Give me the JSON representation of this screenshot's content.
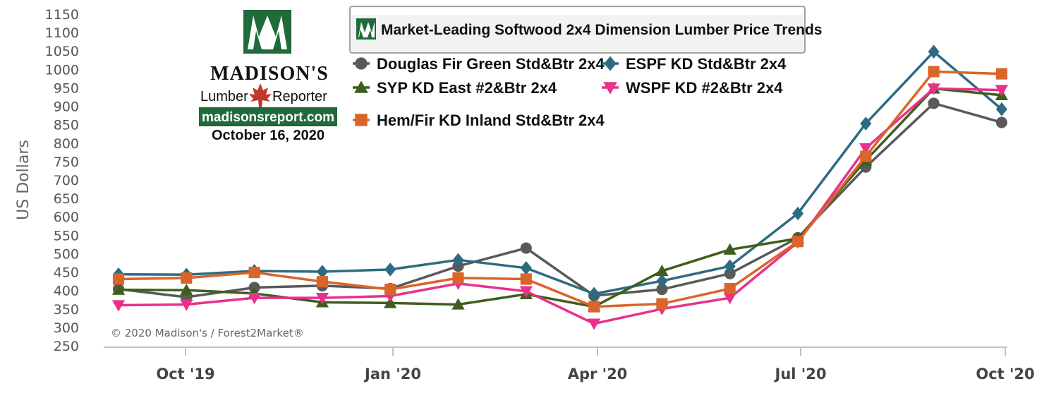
{
  "chart_data": {
    "type": "line",
    "title": "Market-Leading Softwood 2x4 Dimension Lumber Price Trends",
    "ylabel": "US Dollars",
    "xlabel": "",
    "ylim": [
      250,
      1150
    ],
    "yticks": [
      250,
      300,
      350,
      400,
      450,
      500,
      550,
      600,
      650,
      700,
      750,
      800,
      850,
      900,
      950,
      1000,
      1050,
      1100,
      1150
    ],
    "x_tick_labels": [
      "Oct '19",
      "Jan '20",
      "Apr '20",
      "Jul '20",
      "Oct '20"
    ],
    "grid": false,
    "legend_placement": "top",
    "series": [
      {
        "name": "Douglas Fir Green Std&Btr 2x4",
        "color": "#595959",
        "marker": "circle",
        "values": [
          404,
          382,
          408,
          413,
          405,
          466,
          515,
          386,
          403,
          446,
          543,
          735,
          908,
          856
        ]
      },
      {
        "name": "ESPF KD Std&Btr 2x4",
        "color": "#2e6b82",
        "marker": "diamond",
        "values": [
          444,
          443,
          453,
          451,
          457,
          483,
          461,
          391,
          426,
          466,
          609,
          853,
          1048,
          892
        ]
      },
      {
        "name": "SYP KD East #2&Btr 2x4",
        "color": "#3f5e1e",
        "marker": "triangle-up",
        "values": [
          402,
          401,
          392,
          368,
          366,
          362,
          390,
          356,
          453,
          511,
          541,
          753,
          948,
          930
        ]
      },
      {
        "name": "WSPF KD #2&Btr 2x4",
        "color": "#e8318a",
        "marker": "triangle-down",
        "values": [
          360,
          362,
          380,
          380,
          385,
          419,
          398,
          310,
          350,
          380,
          531,
          786,
          948,
          944
        ]
      },
      {
        "name": "Hem/Fir KD Inland Std&Btr 2x4",
        "color": "#d9652b",
        "marker": "square",
        "values": [
          431,
          434,
          449,
          424,
          403,
          434,
          431,
          356,
          364,
          405,
          533,
          764,
          994,
          988
        ]
      }
    ]
  },
  "branding": {
    "name": "MADISON'S",
    "subtitle_left": "Lumber",
    "subtitle_right": "Reporter",
    "url": "madisonsreport.com",
    "date": "October 16, 2020"
  },
  "copyright": "© 2020 Madison's / Forest2Market®"
}
